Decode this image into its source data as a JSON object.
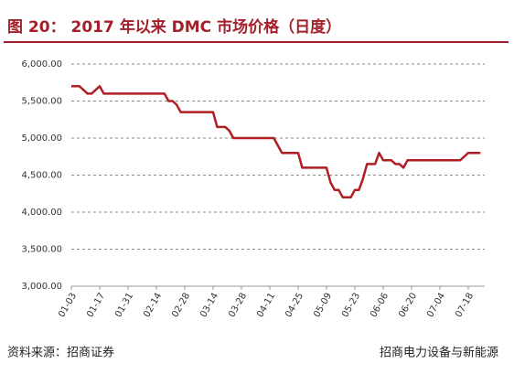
{
  "chart_data": {
    "type": "line",
    "title": "图 20：  2017 年以来 DMC 市场价格（日度）",
    "source": "资料来源：招商证券",
    "watermark": "招商电力设备与新能源",
    "categories": [
      "01-03",
      null,
      null,
      null,
      null,
      null,
      null,
      "01-17",
      null,
      null,
      null,
      null,
      null,
      null,
      "01-31",
      null,
      null,
      null,
      null,
      null,
      null,
      "02-14",
      null,
      null,
      null,
      null,
      null,
      null,
      "02-28",
      null,
      null,
      null,
      null,
      null,
      null,
      "03-14",
      null,
      null,
      null,
      null,
      null,
      null,
      "03-28",
      null,
      null,
      null,
      null,
      null,
      null,
      "04-11",
      null,
      null,
      null,
      null,
      null,
      null,
      "04-25",
      null,
      null,
      null,
      null,
      null,
      null,
      "05-09",
      null,
      null,
      null,
      null,
      null,
      null,
      "05-23",
      null,
      null,
      null,
      null,
      null,
      null,
      "06-06",
      null,
      null,
      null,
      null,
      null,
      null,
      "06-20",
      null,
      null,
      null,
      null,
      null,
      null,
      "07-04",
      null,
      null,
      null,
      null,
      null,
      null,
      "07-18",
      null,
      null,
      null
    ],
    "series": [
      {
        "color": "#b01e23",
        "values": [
          5700,
          5700,
          5700,
          5650,
          5600,
          5600,
          5650,
          5700,
          5600,
          5600,
          5600,
          5600,
          5600,
          5600,
          5600,
          5600,
          5600,
          5600,
          5600,
          5600,
          5600,
          5600,
          5600,
          5600,
          5500,
          5500,
          5450,
          5350,
          5350,
          5350,
          5350,
          5350,
          5350,
          5350,
          5350,
          5350,
          5150,
          5150,
          5150,
          5100,
          5000,
          5000,
          5000,
          5000,
          5000,
          5000,
          5000,
          5000,
          5000,
          5000,
          5000,
          4900,
          4800,
          4800,
          4800,
          4800,
          4800,
          4600,
          4600,
          4600,
          4600,
          4600,
          4600,
          4600,
          4400,
          4300,
          4300,
          4200,
          4200,
          4200,
          4300,
          4300,
          4450,
          4650,
          4650,
          4650,
          4800,
          4700,
          4700,
          4700,
          4650,
          4650,
          4600,
          4700,
          4700,
          4700,
          4700,
          4700,
          4700,
          4700,
          4700,
          4700,
          4700,
          4700,
          4700,
          4700,
          4700,
          4750,
          4800,
          4800,
          4800,
          4800
        ]
      }
    ],
    "ylim": [
      3000,
      6000
    ],
    "yticks": [
      {
        "value": 3000,
        "label": "3,000.00"
      },
      {
        "value": 3500,
        "label": "3,500.00"
      },
      {
        "value": 4000,
        "label": "4,000.00"
      },
      {
        "value": 4500,
        "label": "4,500.00"
      },
      {
        "value": 5000,
        "label": "5,000.00"
      },
      {
        "value": 5500,
        "label": "5,500.00"
      },
      {
        "value": 6000,
        "label": "6,000.00"
      }
    ],
    "grid": true
  }
}
